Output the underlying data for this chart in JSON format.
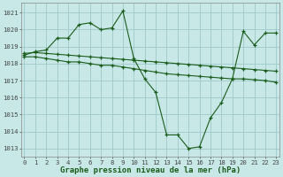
{
  "background_color": "#c8e8e8",
  "grid_color": "#a0c8c8",
  "line_color": "#1a5c1a",
  "title": "Graphe pression niveau de la mer (hPa)",
  "ylabel_vals": [
    1013,
    1014,
    1015,
    1016,
    1017,
    1018,
    1019,
    1020,
    1021
  ],
  "xlim": [
    -0.3,
    23.3
  ],
  "ylim": [
    1012.5,
    1021.6
  ],
  "xticks": [
    0,
    1,
    2,
    3,
    4,
    5,
    6,
    7,
    8,
    9,
    10,
    11,
    12,
    13,
    14,
    15,
    16,
    17,
    18,
    19,
    20,
    21,
    22,
    23
  ],
  "series1_x": [
    0,
    1,
    2,
    3,
    4,
    5,
    6,
    7,
    8,
    9,
    10,
    11,
    12,
    13,
    14,
    15,
    16,
    17,
    18,
    19,
    20,
    21,
    22,
    23
  ],
  "series1_y": [
    1018.5,
    1018.7,
    1018.8,
    1019.5,
    1019.5,
    1020.3,
    1020.4,
    1020.0,
    1020.1,
    1021.1,
    1018.3,
    1017.1,
    1016.3,
    1013.8,
    1013.8,
    1013.0,
    1013.1,
    1014.8,
    1015.7,
    1017.1,
    1019.9,
    1019.1,
    1019.8,
    1019.8
  ],
  "series2_x": [
    0,
    1,
    2,
    3,
    4,
    5,
    6,
    7,
    8,
    9,
    10,
    11,
    12,
    13,
    14,
    15,
    16,
    17,
    18,
    19,
    20,
    21,
    22,
    23
  ],
  "series2_y": [
    1018.4,
    1018.4,
    1018.3,
    1018.2,
    1018.1,
    1018.1,
    1018.0,
    1017.9,
    1017.9,
    1017.8,
    1017.7,
    1017.6,
    1017.5,
    1017.4,
    1017.35,
    1017.3,
    1017.25,
    1017.2,
    1017.15,
    1017.1,
    1017.1,
    1017.05,
    1017.0,
    1016.9
  ],
  "series3_x": [
    0,
    1,
    2,
    3,
    4,
    5,
    6,
    7,
    8,
    9,
    10,
    11,
    12,
    13,
    14,
    15,
    16,
    17,
    18,
    19,
    20,
    21,
    22,
    23
  ],
  "series3_y": [
    1018.6,
    1018.65,
    1018.6,
    1018.55,
    1018.5,
    1018.45,
    1018.4,
    1018.35,
    1018.3,
    1018.25,
    1018.2,
    1018.15,
    1018.1,
    1018.05,
    1018.0,
    1017.95,
    1017.9,
    1017.85,
    1017.8,
    1017.75,
    1017.7,
    1017.65,
    1017.6,
    1017.55
  ],
  "title_fontsize": 6.5,
  "tick_fontsize": 5.2
}
